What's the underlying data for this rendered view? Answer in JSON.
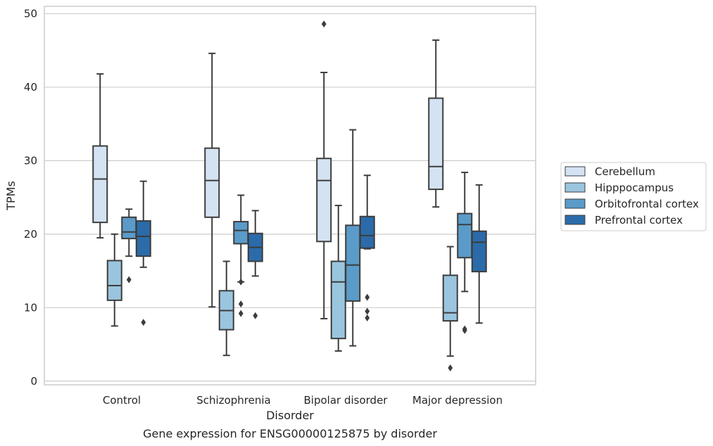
{
  "chart_data": {
    "type": "box",
    "title": "Gene expression for ENSG00000125875 by disorder",
    "xlabel": "Disorder",
    "ylabel": "TPMs",
    "ylim": [
      -0.5,
      51
    ],
    "yticks": [
      0,
      10,
      20,
      30,
      40,
      50
    ],
    "grid": true,
    "legend_position": "right",
    "categories": [
      "Control",
      "Schizophrenia",
      "Bipolar disorder",
      "Major depression"
    ],
    "series": [
      {
        "name": "Cerebellum",
        "color": "#d4e3f3",
        "boxes": [
          {
            "whisker_low": 19.5,
            "q1": 21.6,
            "median": 27.5,
            "q3": 32.0,
            "whisker_high": 41.8,
            "outliers": []
          },
          {
            "whisker_low": 10.1,
            "q1": 22.3,
            "median": 27.3,
            "q3": 31.7,
            "whisker_high": 44.6,
            "outliers": []
          },
          {
            "whisker_low": 8.5,
            "q1": 19.0,
            "median": 27.3,
            "q3": 30.3,
            "whisker_high": 42.0,
            "outliers": [
              48.6
            ]
          },
          {
            "whisker_low": 23.7,
            "q1": 26.1,
            "median": 29.2,
            "q3": 38.5,
            "whisker_high": 46.4,
            "outliers": []
          }
        ]
      },
      {
        "name": "Hipppocampus",
        "color": "#9ac5de",
        "boxes": [
          {
            "whisker_low": 7.5,
            "q1": 11.0,
            "median": 13.0,
            "q3": 16.4,
            "whisker_high": 20.0,
            "outliers": []
          },
          {
            "whisker_low": 3.5,
            "q1": 7.0,
            "median": 9.6,
            "q3": 12.3,
            "whisker_high": 16.3,
            "outliers": []
          },
          {
            "whisker_low": 4.1,
            "q1": 5.8,
            "median": 13.5,
            "q3": 16.3,
            "whisker_high": 23.9,
            "outliers": []
          },
          {
            "whisker_low": 3.4,
            "q1": 8.2,
            "median": 9.3,
            "q3": 14.4,
            "whisker_high": 18.3,
            "outliers": [
              1.8
            ]
          }
        ]
      },
      {
        "name": "Orbitofrontal cortex",
        "color": "#5a9bc9",
        "boxes": [
          {
            "whisker_low": 17.0,
            "q1": 19.4,
            "median": 20.3,
            "q3": 22.3,
            "whisker_high": 23.4,
            "outliers": [
              13.8
            ]
          },
          {
            "whisker_low": 13.5,
            "q1": 18.7,
            "median": 20.5,
            "q3": 21.7,
            "whisker_high": 25.3,
            "outliers": [
              13.5,
              10.5,
              9.2
            ]
          },
          {
            "whisker_low": 4.8,
            "q1": 10.9,
            "median": 15.8,
            "q3": 21.2,
            "whisker_high": 34.2,
            "outliers": []
          },
          {
            "whisker_low": 12.2,
            "q1": 16.8,
            "median": 21.3,
            "q3": 22.8,
            "whisker_high": 28.4,
            "outliers": [
              7.1,
              6.9
            ]
          }
        ]
      },
      {
        "name": "Prefrontal cortex",
        "color": "#2b6ba9",
        "boxes": [
          {
            "whisker_low": 15.5,
            "q1": 17.0,
            "median": 19.7,
            "q3": 21.8,
            "whisker_high": 27.2,
            "outliers": [
              8.0
            ]
          },
          {
            "whisker_low": 14.3,
            "q1": 16.3,
            "median": 18.2,
            "q3": 20.1,
            "whisker_high": 23.2,
            "outliers": [
              8.9
            ]
          },
          {
            "whisker_low": 18.0,
            "q1": 18.1,
            "median": 19.8,
            "q3": 22.4,
            "whisker_high": 28.0,
            "outliers": [
              11.4,
              9.5,
              8.6
            ]
          },
          {
            "whisker_low": 7.9,
            "q1": 14.9,
            "median": 18.9,
            "q3": 20.4,
            "whisker_high": 26.7,
            "outliers": []
          }
        ]
      }
    ]
  }
}
